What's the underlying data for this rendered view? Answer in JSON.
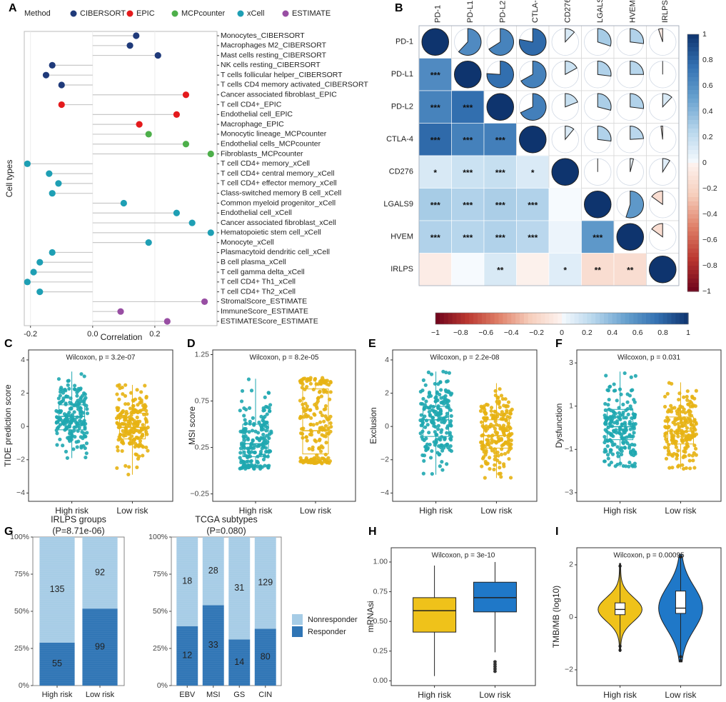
{
  "colors": {
    "CIBERSORT": "#1f3a7a",
    "EPIC": "#e41a1c",
    "MCPcounter": "#4daf4a",
    "xCell": "#1e9fb4",
    "ESTIMATE": "#984ea3",
    "high": "#1fa7b0",
    "low": "#e7b213",
    "nonresp": "#a6cce6",
    "resp": "#2f75b5",
    "mrnaHigh": "#efc21a",
    "mrnaLow": "#1f78c8"
  },
  "chart_data": [
    {
      "id": "A",
      "panel_label": "A",
      "type": "scatter",
      "subtype": "lollipop",
      "legend_title": "Method",
      "legend": [
        "CIBERSORT",
        "EPIC",
        "MCPcounter",
        "xCell",
        "ESTIMATE"
      ],
      "xlabel": "Correlation",
      "ylabel": "Cell types",
      "xlim": [
        -0.22,
        0.4
      ],
      "xticks": [
        -0.2,
        0.0,
        0.2
      ],
      "xtick_labels": [
        "-0.2",
        "0.0",
        "0.2"
      ],
      "labels": [
        "Monocytes_CIBERSORT",
        "Macrophages M2_CIBERSORT",
        "Mast cells resting_CIBERSORT",
        "NK cells resting_CIBERSORT",
        "T cells follicular helper_CIBERSORT",
        "T cells CD4 memory activated_CIBERSORT",
        "Cancer associated fibroblast_EPIC",
        "T cell CD4+_EPIC",
        "Endothelial cell_EPIC",
        "Macrophage_EPIC",
        "Monocytic lineage_MCPcounter",
        "Endothelial cells_MCPcounter",
        "Fibroblasts_MCPcounter",
        "T cell CD4+ memory_xCell",
        "T cell CD4+ central memory_xCell",
        "T cell CD4+ effector memory_xCell",
        "Class-switched memory B cell_xCell",
        "Common myeloid progenitor_xCell",
        "Endothelial cell_xCell",
        "Cancer associated fibroblast_xCell",
        "Hematopoietic stem cell_xCell",
        "Monocyte_xCell",
        "Plasmacytoid dendritic cell_xCell",
        "B cell plasma_xCell",
        "T cell gamma delta_xCell",
        "T cell CD4+ Th1_xCell",
        "T cell CD4+ Th2_xCell",
        "StromalScore_ESTIMATE",
        "ImmuneScore_ESTIMATE",
        "ESTIMATEScore_ESTIMATE"
      ],
      "values": [
        0.14,
        0.12,
        0.21,
        -0.13,
        -0.15,
        -0.1,
        0.3,
        -0.1,
        0.27,
        0.15,
        0.18,
        0.3,
        0.38,
        -0.21,
        -0.14,
        -0.11,
        -0.13,
        0.1,
        0.27,
        0.32,
        0.38,
        0.18,
        -0.13,
        -0.17,
        -0.19,
        -0.21,
        -0.17,
        0.36,
        0.09,
        0.24
      ],
      "methods": [
        "CIBERSORT",
        "CIBERSORT",
        "CIBERSORT",
        "CIBERSORT",
        "CIBERSORT",
        "CIBERSORT",
        "EPIC",
        "EPIC",
        "EPIC",
        "EPIC",
        "MCPcounter",
        "MCPcounter",
        "MCPcounter",
        "xCell",
        "xCell",
        "xCell",
        "xCell",
        "xCell",
        "xCell",
        "xCell",
        "xCell",
        "xCell",
        "xCell",
        "xCell",
        "xCell",
        "xCell",
        "xCell",
        "ESTIMATE",
        "ESTIMATE",
        "ESTIMATE"
      ]
    },
    {
      "id": "B",
      "panel_label": "B",
      "type": "heatmap",
      "subtype": "corrplot",
      "labels": [
        "PD-1",
        "PD-L1",
        "PD-L2",
        "CTLA-4",
        "CD276",
        "LGALS9",
        "HVEM",
        "IRLPS"
      ],
      "matrix": [
        [
          1.0,
          0.62,
          0.66,
          0.78,
          0.12,
          0.3,
          0.27,
          -0.05
        ],
        [
          0.62,
          1.0,
          0.76,
          0.67,
          0.17,
          0.27,
          0.25,
          0.0
        ],
        [
          0.66,
          0.76,
          1.0,
          0.68,
          0.19,
          0.29,
          0.27,
          0.12
        ],
        [
          0.78,
          0.67,
          0.68,
          1.0,
          0.11,
          0.27,
          0.24,
          -0.02
        ],
        [
          0.12,
          0.17,
          0.19,
          0.11,
          1.0,
          0.0,
          0.04,
          0.09
        ],
        [
          0.3,
          0.27,
          0.29,
          0.27,
          0.0,
          1.0,
          0.55,
          -0.15
        ],
        [
          0.27,
          0.25,
          0.27,
          0.24,
          0.04,
          0.55,
          1.0,
          -0.15
        ],
        [
          -0.05,
          0.0,
          0.12,
          -0.02,
          0.09,
          -0.15,
          -0.15,
          1.0
        ]
      ],
      "significance": [
        [
          "",
          "",
          "",
          "",
          "",
          "",
          "",
          ""
        ],
        [
          "***",
          "",
          "",
          "",
          "",
          "",
          "",
          ""
        ],
        [
          "***",
          "***",
          "",
          "",
          "",
          "",
          "",
          ""
        ],
        [
          "***",
          "***",
          "***",
          "",
          "",
          "",
          "",
          ""
        ],
        [
          "*",
          "***",
          "***",
          "*",
          "",
          "",
          "",
          ""
        ],
        [
          "***",
          "***",
          "***",
          "***",
          "",
          "",
          "",
          ""
        ],
        [
          "***",
          "***",
          "***",
          "***",
          "",
          "***",
          "",
          ""
        ],
        [
          "",
          "",
          "**",
          "",
          "*",
          "**",
          "**",
          ""
        ]
      ],
      "right_scale": [
        1,
        0.8,
        0.6,
        0.4,
        0.2,
        0,
        -0.2,
        -0.4,
        -0.6,
        -0.8,
        -1
      ],
      "right_scale_labels": [
        "1",
        "0.8",
        "0.6",
        "0.4",
        "0.2",
        "0",
        "−0.2",
        "−0.4",
        "−0.6",
        "−0.8",
        "−1"
      ],
      "bottom_scale": [
        -1,
        -0.8,
        -0.6,
        -0.4,
        -0.2,
        0,
        0.2,
        0.4,
        0.6,
        0.8,
        1
      ],
      "bottom_scale_labels": [
        "−1",
        "−0.8",
        "−0.6",
        "−0.4",
        "−0.2",
        "0",
        "0.2",
        "0.4",
        "0.6",
        "0.8",
        "1"
      ]
    },
    {
      "id": "C",
      "panel_label": "C",
      "type": "box",
      "title": "Wilcoxon, p = 3.2e-07",
      "ylabel": "TIDE prediction score",
      "categories": [
        "High risk",
        "Low risk"
      ],
      "ylim": [
        -4.5,
        4.6
      ],
      "yticks": [
        -4,
        -2,
        0,
        2,
        4
      ],
      "ytick_labels": [
        "−4",
        "−2",
        "0",
        "2",
        "4"
      ],
      "boxes": [
        {
          "min": -1.9,
          "q1": -0.2,
          "median": 0.6,
          "q3": 1.3,
          "max": 3.3
        },
        {
          "min": -2.9,
          "q1": -0.75,
          "median": -0.05,
          "q3": 0.8,
          "max": 2.5
        }
      ]
    },
    {
      "id": "D",
      "panel_label": "D",
      "type": "box",
      "title": "Wilcoxon, p = 8.2e-05",
      "ylabel": "MSI score",
      "categories": [
        "High risk",
        "Low risk"
      ],
      "ylim": [
        -0.33,
        1.3
      ],
      "yticks": [
        -0.25,
        0.25,
        0.75,
        1.25
      ],
      "ytick_labels": [
        "−0.25",
        "0.25",
        "0.75",
        "1.25"
      ],
      "boxes": [
        {
          "min": 0.02,
          "q1": 0.15,
          "median": 0.29,
          "q3": 0.5,
          "max": 0.99
        },
        {
          "min": 0.07,
          "q1": 0.18,
          "median": 0.43,
          "q3": 0.88,
          "max": 1.0
        }
      ]
    },
    {
      "id": "E",
      "panel_label": "E",
      "type": "box",
      "title": "Wilcoxon, p = 2.2e-08",
      "ylabel": "Exclusion",
      "categories": [
        "High risk",
        "Low risk"
      ],
      "ylim": [
        -4.5,
        4.6
      ],
      "yticks": [
        -4,
        -2,
        0,
        2,
        4
      ],
      "ytick_labels": [
        "−4",
        "−2",
        "0",
        "2",
        "4"
      ],
      "boxes": [
        {
          "min": -2.9,
          "q1": -0.6,
          "median": 0.4,
          "q3": 1.2,
          "max": 3.3
        },
        {
          "min": -3.1,
          "q1": -1.3,
          "median": -0.55,
          "q3": 0.4,
          "max": 2.6
        }
      ]
    },
    {
      "id": "F",
      "panel_label": "F",
      "type": "box",
      "title": "Wilcoxon, p = 0.031",
      "ylabel": "Dysfunction",
      "categories": [
        "High risk",
        "Low risk"
      ],
      "ylim": [
        -3.4,
        3.6
      ],
      "yticks": [
        -3,
        -1,
        1,
        3
      ],
      "ytick_labels": [
        "−3",
        "−1",
        "1",
        "3"
      ],
      "boxes": [
        {
          "min": -1.8,
          "q1": -0.55,
          "median": 0.05,
          "q3": 0.85,
          "max": 2.6
        },
        {
          "min": -1.9,
          "q1": -0.75,
          "median": -0.15,
          "q3": 0.5,
          "max": 2.1
        }
      ]
    },
    {
      "id": "G1",
      "panel_label": "G",
      "type": "bar",
      "subtype": "stacked-percent",
      "title": "IRLPS groups",
      "subtitle": "(P=8.71e-06)",
      "categories": [
        "High risk",
        "Low risk"
      ],
      "series": [
        {
          "name": "Responder",
          "values": [
            55,
            99
          ]
        },
        {
          "name": "Nonresponder",
          "values": [
            135,
            92
          ]
        }
      ],
      "yticks": [
        0,
        25,
        50,
        75,
        100
      ],
      "ytick_labels": [
        "0%",
        "25%",
        "50%",
        "75%",
        "100%"
      ]
    },
    {
      "id": "G2",
      "type": "bar",
      "subtype": "stacked-percent",
      "title": "TCGA subtypes",
      "subtitle": "(P=0.080)",
      "categories": [
        "EBV",
        "MSI",
        "GS",
        "CIN"
      ],
      "series": [
        {
          "name": "Responder",
          "values": [
            12,
            33,
            14,
            80
          ]
        },
        {
          "name": "Nonresponder",
          "values": [
            18,
            28,
            31,
            129
          ]
        }
      ],
      "yticks": [
        0,
        25,
        50,
        75,
        100
      ],
      "ytick_labels": [
        "0%",
        "25%",
        "50%",
        "75%",
        "100%"
      ],
      "legend": [
        "Nonresponder",
        "Responder"
      ]
    },
    {
      "id": "H",
      "panel_label": "H",
      "type": "box",
      "title": "Wilcoxon, p = 3e-10",
      "ylabel": "mRNAsi",
      "categories": [
        "High risk",
        "Low risk"
      ],
      "ylim": [
        -0.04,
        1.12
      ],
      "yticks": [
        0,
        0.25,
        0.5,
        0.75,
        1.0
      ],
      "ytick_labels": [
        "0.00",
        "0.25",
        "0.50",
        "0.75",
        "1.00"
      ],
      "boxes": [
        {
          "min": 0.04,
          "q1": 0.41,
          "median": 0.59,
          "q3": 0.7,
          "max": 0.97
        },
        {
          "min": 0.24,
          "q1": 0.58,
          "median": 0.7,
          "q3": 0.83,
          "max": 1.0,
          "outliers": [
            0.08,
            0.1,
            0.12,
            0.14,
            0.16
          ]
        }
      ]
    },
    {
      "id": "I",
      "panel_label": "I",
      "type": "violin",
      "title": "Wilcoxon, p = 0.00095",
      "ylabel": "TMB/MB (log10)",
      "categories": [
        "High risk",
        "Low risk"
      ],
      "ylim": [
        -2.6,
        2.65
      ],
      "yticks": [
        -2,
        0,
        2
      ],
      "ytick_labels": [
        "−2",
        "0",
        "2"
      ],
      "boxes": [
        {
          "min": -1.3,
          "q1": 0.1,
          "median": 0.3,
          "q3": 0.55,
          "max": 2.05
        },
        {
          "min": -1.7,
          "q1": 0.15,
          "median": 0.35,
          "q3": 1.0,
          "max": 2.4
        }
      ]
    }
  ]
}
